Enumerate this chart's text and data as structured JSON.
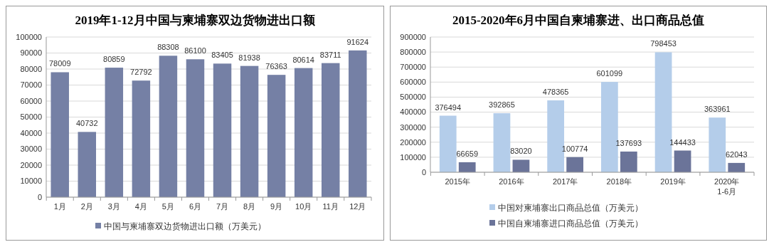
{
  "chart_data": [
    {
      "type": "bar",
      "title": "2019年1-12月中国与柬埔寨双边货物进出口额",
      "categories": [
        "1月",
        "2月",
        "3月",
        "4月",
        "5月",
        "6月",
        "7月",
        "8月",
        "9月",
        "10月",
        "11月",
        "12月"
      ],
      "series": [
        {
          "name": "中国与柬埔寨双边货物进出口额（万美元）",
          "color": "#7580a5",
          "values": [
            78009,
            40732,
            80859,
            72792,
            88308,
            86100,
            83405,
            81938,
            76363,
            80614,
            83711,
            91624
          ]
        }
      ],
      "ylim": [
        0,
        100000
      ],
      "yticks": [
        0,
        10000,
        20000,
        30000,
        40000,
        50000,
        60000,
        70000,
        80000,
        90000,
        100000
      ],
      "grid": "y",
      "legend": "bottom",
      "data_labels": true
    },
    {
      "type": "bar",
      "title": "2015-2020年6月中国自柬埔寨进、出口商品总值",
      "categories": [
        "2015年",
        "2016年",
        "2017年",
        "2018年",
        "2019年",
        "2020年\n1-6月"
      ],
      "series": [
        {
          "name": "中国对柬埔寨出口商品总值（万美元）",
          "color": "#b4cdea",
          "values": [
            376494,
            392865,
            478365,
            601099,
            798453,
            363961
          ]
        },
        {
          "name": "中国自柬埔寨进口商品总值（万美元）",
          "color": "#6b7499",
          "values": [
            66659,
            83020,
            100774,
            137693,
            144433,
            62043
          ]
        }
      ],
      "ylim": [
        0,
        900000
      ],
      "yticks": [
        0,
        100000,
        200000,
        300000,
        400000,
        500000,
        600000,
        700000,
        800000,
        900000
      ],
      "grid": "y",
      "legend": "bottom left",
      "data_labels": true
    }
  ]
}
